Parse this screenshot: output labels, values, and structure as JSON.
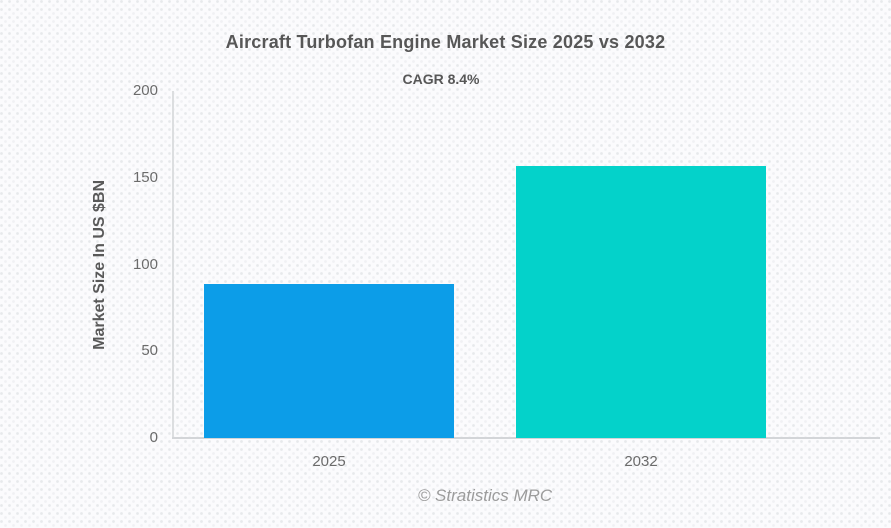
{
  "page": {
    "background_color": "#fbfbfd",
    "pattern": "subtle-dot-grid"
  },
  "chart_data": {
    "type": "bar",
    "title": "Aircraft Turbofan Engine Market Size 2025 vs 2032",
    "subtitle": "CAGR 8.4%",
    "categories": [
      "2025",
      "2032"
    ],
    "values": [
      89,
      157
    ],
    "bar_colors": [
      "#0c9de8",
      "#04d2ca"
    ],
    "xlabel": "",
    "ylabel": "Market Size In US $BN",
    "ylim": [
      0,
      200
    ],
    "yticks": [
      0,
      50,
      100,
      150,
      200
    ],
    "grid": false,
    "legend_position": "none",
    "footer": "© Stratistics MRC",
    "colors": {
      "title_text": "#575757",
      "tick_text": "#6b6b6b",
      "axis_line": "#d6d8da",
      "footer_text": "#9c9c9c"
    }
  }
}
